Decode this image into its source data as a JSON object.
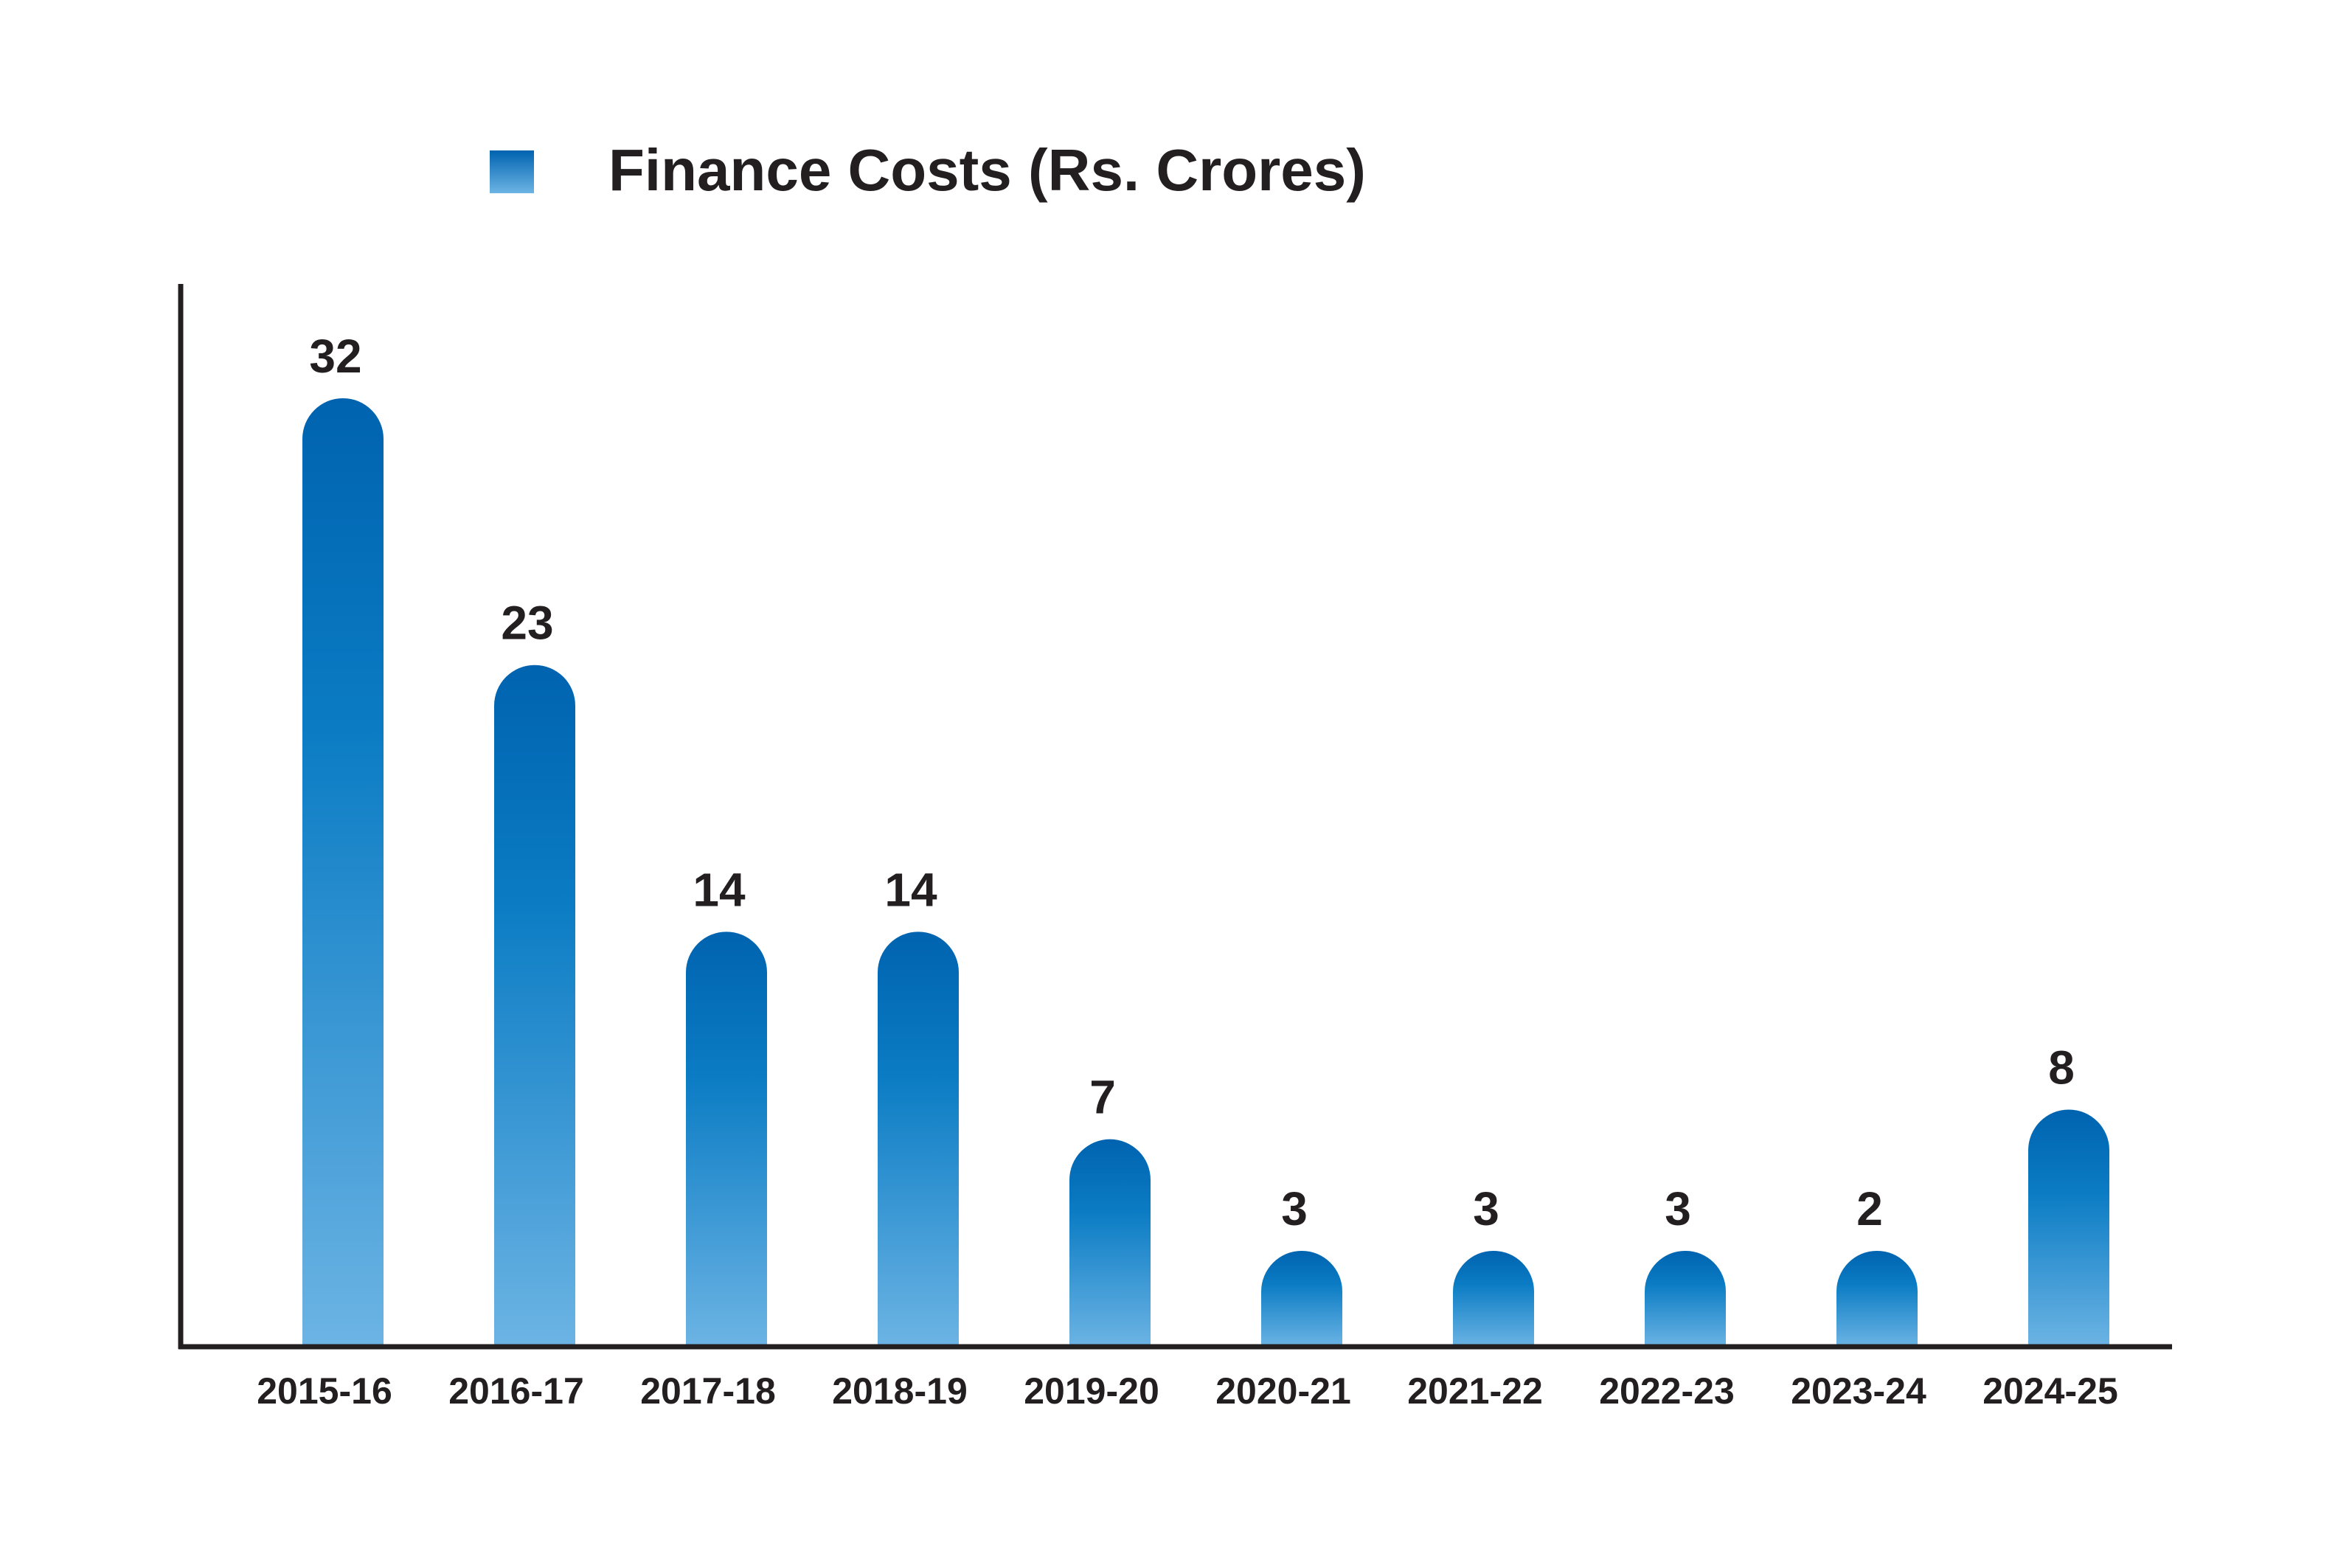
{
  "chart_data": {
    "type": "bar",
    "categories": [
      "2015-16",
      "2016-17",
      "2017-18",
      "2018-19",
      "2019-20",
      "2020-21",
      "2021-22",
      "2022-23",
      "2023-24",
      "2024-25"
    ],
    "series": [
      {
        "name": "Finance Costs (Rs. Crores)",
        "values": [
          32,
          23,
          14,
          14,
          7,
          3,
          3,
          3,
          2,
          8
        ]
      }
    ],
    "data_labels": [
      "32",
      "23",
      "14",
      "14",
      "7",
      "3",
      "3",
      "3",
      "2",
      "8"
    ],
    "legend_position": "top",
    "grid": false,
    "colors": {
      "bar_top": "#0063b0",
      "bar_mid": "#0b7cc4",
      "bar_bottom": "#6cb4e4",
      "axis": "#231f20",
      "text": "#231f20"
    }
  }
}
